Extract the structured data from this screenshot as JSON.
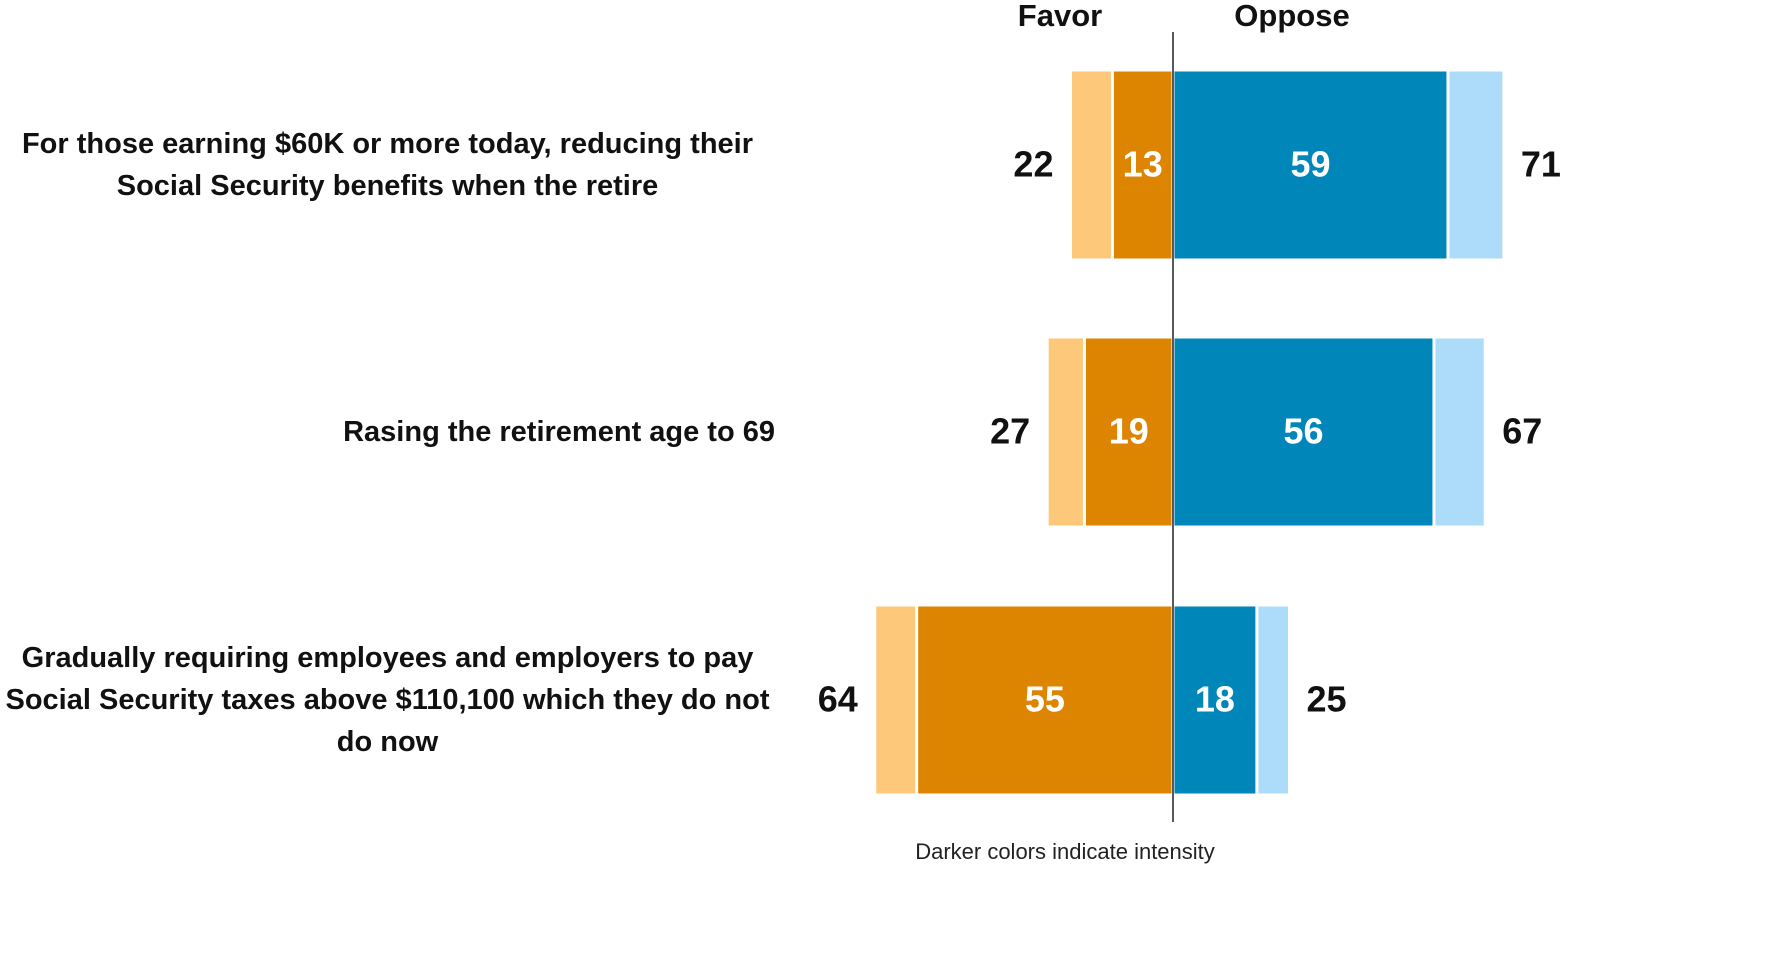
{
  "chart_data": {
    "type": "diverging_bar",
    "categories": [
      "For those earning $60K or more today, reducing their Social Security benefits when the retire",
      "Rasing the retirement age to 69",
      "Gradually requiring employees and employers to pay Social Security taxes above $110,100 which they do not do now"
    ],
    "series": [
      {
        "name": "Favor",
        "side": "left",
        "color": "#fdc87a",
        "values": [
          22,
          27,
          64
        ],
        "strong": [
          13,
          19,
          55
        ],
        "strong_color": "#dd8400"
      },
      {
        "name": "Oppose",
        "side": "right",
        "color": "#addcfa",
        "values": [
          71,
          67,
          25
        ],
        "strong": [
          59,
          56,
          18
        ],
        "strong_color": "#0086b8"
      }
    ],
    "note": "Darker colors indicate intensity"
  }
}
